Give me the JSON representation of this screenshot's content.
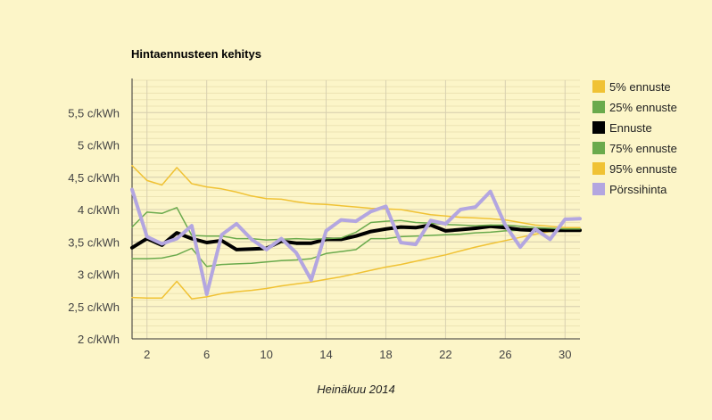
{
  "chart_data": {
    "type": "line",
    "title": "Hintaennusteen kehitys",
    "xlabel": "Heinäkuu 2014",
    "ylabel": "",
    "xlim": [
      1,
      31
    ],
    "ylim": [
      2,
      6
    ],
    "x_ticks": [
      2,
      6,
      10,
      14,
      18,
      22,
      26,
      30
    ],
    "y_ticks": [
      {
        "value": 2,
        "label": "2 c/kWh"
      },
      {
        "value": 2.5,
        "label": "2,5 c/kWh"
      },
      {
        "value": 3,
        "label": "3 c/kWh"
      },
      {
        "value": 3.5,
        "label": "3,5 c/kWh"
      },
      {
        "value": 4,
        "label": "4 c/kWh"
      },
      {
        "value": 4.5,
        "label": "4,5 c/kWh"
      },
      {
        "value": 5,
        "label": "5 c/kWh"
      },
      {
        "value": 5.5,
        "label": "5,5 c/kWh"
      }
    ],
    "grid": true,
    "legend_position": "right",
    "x": [
      1,
      2,
      3,
      4,
      5,
      6,
      7,
      8,
      9,
      10,
      11,
      12,
      13,
      14,
      15,
      16,
      17,
      18,
      19,
      20,
      21,
      22,
      23,
      24,
      25,
      26,
      27,
      28,
      29,
      30,
      31
    ],
    "series": [
      {
        "name": "5% ennuste",
        "color": "#f0c234",
        "width": 1.5,
        "values": [
          2.64,
          2.63,
          2.63,
          2.89,
          2.62,
          2.65,
          2.7,
          2.73,
          2.75,
          2.78,
          2.82,
          2.85,
          2.88,
          2.92,
          2.96,
          3.01,
          3.06,
          3.11,
          3.15,
          3.2,
          3.25,
          3.3,
          3.36,
          3.42,
          3.47,
          3.52,
          3.57,
          3.62,
          3.66,
          3.69,
          3.7
        ]
      },
      {
        "name": "25% ennuste",
        "color": "#6aaa4c",
        "width": 1.5,
        "values": [
          3.24,
          3.24,
          3.25,
          3.3,
          3.4,
          3.12,
          3.15,
          3.16,
          3.17,
          3.19,
          3.21,
          3.22,
          3.24,
          3.32,
          3.35,
          3.38,
          3.55,
          3.55,
          3.58,
          3.59,
          3.6,
          3.61,
          3.62,
          3.64,
          3.65,
          3.67,
          3.68,
          3.68,
          3.69,
          3.69,
          3.69
        ]
      },
      {
        "name": "Ennuste",
        "color": "#000000",
        "width": 4,
        "values": [
          3.41,
          3.55,
          3.45,
          3.64,
          3.55,
          3.49,
          3.52,
          3.38,
          3.39,
          3.4,
          3.51,
          3.48,
          3.48,
          3.54,
          3.54,
          3.59,
          3.66,
          3.7,
          3.73,
          3.72,
          3.76,
          3.67,
          3.69,
          3.71,
          3.74,
          3.72,
          3.69,
          3.68,
          3.68,
          3.68,
          3.68
        ]
      },
      {
        "name": "75% ennuste",
        "color": "#6aaa4c",
        "width": 1.5,
        "values": [
          3.73,
          3.96,
          3.94,
          4.03,
          3.6,
          3.59,
          3.59,
          3.55,
          3.55,
          3.53,
          3.54,
          3.55,
          3.54,
          3.55,
          3.56,
          3.65,
          3.8,
          3.82,
          3.83,
          3.8,
          3.79,
          3.77,
          3.76,
          3.75,
          3.76,
          3.76,
          3.74,
          3.72,
          3.71,
          3.7,
          3.7
        ]
      },
      {
        "name": "95% ennuste",
        "color": "#f0c234",
        "width": 1.5,
        "values": [
          4.68,
          4.45,
          4.38,
          4.65,
          4.4,
          4.35,
          4.32,
          4.27,
          4.21,
          4.17,
          4.16,
          4.12,
          4.09,
          4.08,
          4.06,
          4.04,
          4.02,
          4.01,
          4.0,
          3.96,
          3.92,
          3.9,
          3.88,
          3.87,
          3.86,
          3.84,
          3.8,
          3.76,
          3.74,
          3.72,
          3.72
        ]
      },
      {
        "name": "Pörssihinta",
        "color": "#b3a6e0",
        "width": 4,
        "values": [
          4.31,
          3.58,
          3.47,
          3.55,
          3.75,
          2.69,
          3.61,
          3.78,
          3.54,
          3.38,
          3.55,
          3.33,
          2.91,
          3.67,
          3.84,
          3.82,
          3.97,
          4.05,
          3.49,
          3.46,
          3.83,
          3.78,
          4.0,
          4.04,
          4.28,
          3.76,
          3.42,
          3.7,
          3.54,
          3.85,
          3.86
        ]
      }
    ]
  }
}
